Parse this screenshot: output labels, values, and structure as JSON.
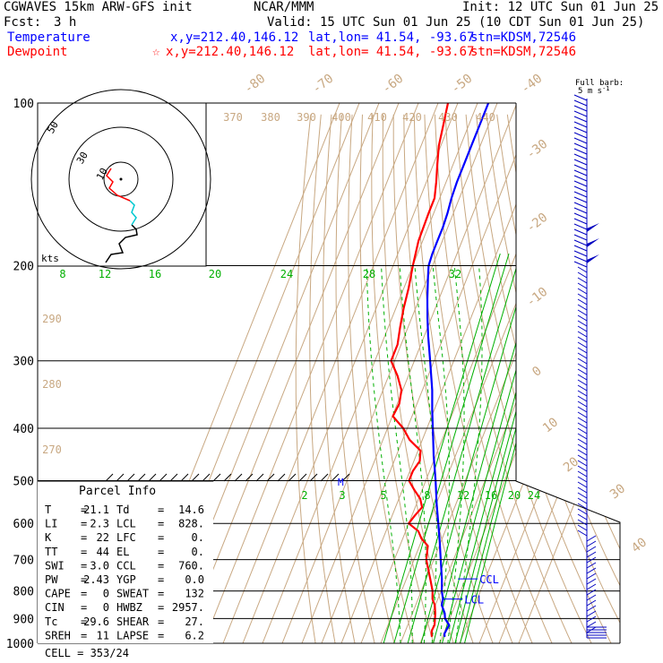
{
  "header": {
    "model": "CGWAVES 15km ARW-GFS init",
    "org": "NCAR/MMM",
    "init": "Init: 12 UTC Sun 01 Jun 25",
    "fcst_label": "Fcst:",
    "fcst_value": "3 h",
    "valid": "Valid: 15 UTC Sun 01 Jun 25 (10 CDT Sun 01 Jun 25)"
  },
  "legend": {
    "temperature": {
      "name": "Temperature",
      "xy": "x,y=212.40,146.12",
      "latlon": "lat,lon= 41.54, -93.67",
      "stn": "stn=KDSM,72546",
      "color": "#0000ff"
    },
    "dewpoint": {
      "name": "Dewpoint",
      "star": "☆",
      "xy": "x,y=212.40,146.12",
      "latlon": "lat,lon= 41.54, -93.67",
      "stn": "stn=KDSM,72546",
      "color": "#ff0000"
    }
  },
  "barb_legend": {
    "line1": "Full barb:",
    "line2": "5 m s",
    "sup": "-1"
  },
  "hodograph": {
    "ring_labels": [
      "50",
      "30",
      "10"
    ],
    "unit": "kts"
  },
  "parcel": {
    "title": "Parcel Info",
    "rows": [
      {
        "l": "T",
        "v1": "21.1",
        "m": "Td",
        "v2": "14.6"
      },
      {
        "l": "LI",
        "v1": "2.3",
        "m": "LCL",
        "v2": "828."
      },
      {
        "l": "K",
        "v1": "22",
        "m": "LFC",
        "v2": "0."
      },
      {
        "l": "TT",
        "v1": "44",
        "m": "EL",
        "v2": "0."
      },
      {
        "l": "SWI",
        "v1": "3.0",
        "m": "CCL",
        "v2": "760."
      },
      {
        "l": "PW",
        "v1": "2.43",
        "m": "YGP",
        "v2": "0.0"
      },
      {
        "l": "CAPE",
        "v1": "0",
        "m": "SWEAT",
        "v2": "132"
      },
      {
        "l": "CIN",
        "v1": "0",
        "m": "HWBZ",
        "v2": "2957."
      },
      {
        "l": "Tc",
        "v1": "29.6",
        "m": "SHEAR",
        "v2": "27."
      },
      {
        "l": "SREH",
        "v1": "11",
        "m": "LAPSE",
        "v2": "6.2"
      }
    ],
    "cell": "CELL = 353/24"
  },
  "markers": {
    "ccl": "CCL",
    "lcl": "LCL",
    "m": "M"
  },
  "colors": {
    "temperature": "#0000ff",
    "dewpoint": "#ff0000",
    "dry_adiabat": "#c8a882",
    "mixing_ratio": "#00b000",
    "moist_adiabat": "#00b000",
    "isobar": "#000000",
    "barb": "#0000c0",
    "hodo_wind": "#00c8d0"
  },
  "chart_data": {
    "type": "line",
    "title": "",
    "xlabel": "",
    "ylabel": "",
    "y_axis": {
      "scale": "log",
      "ylim": [
        1000,
        100
      ],
      "ticks": [
        100,
        200,
        300,
        400,
        500,
        600,
        700,
        800,
        900,
        1000
      ]
    },
    "isotherm_labels": [
      "-80",
      "-70",
      "-60",
      "-50",
      "-40",
      "-30",
      "-20",
      "-10",
      "0",
      "10",
      "20",
      "30",
      "40"
    ],
    "theta_labels": [
      "370",
      "380",
      "390",
      "400",
      "410",
      "420",
      "430",
      "440",
      "290",
      "280",
      "270"
    ],
    "mixing_ratio_labels_upper": [
      "8",
      "12",
      "16",
      "20",
      "24",
      "28",
      "32"
    ],
    "mixing_ratio_labels_lower": [
      "2",
      "3",
      "5",
      "8",
      "12",
      "16",
      "20",
      "24"
    ],
    "series": [
      {
        "name": "Temperature",
        "pressure": [
          973,
          960,
          945,
          925,
          900,
          880,
          850,
          828,
          800,
          760,
          700,
          650,
          600,
          550,
          500,
          470,
          450,
          420,
          400,
          370,
          340,
          300,
          270,
          250,
          230,
          210,
          200,
          190,
          180,
          170,
          160,
          150,
          140,
          130,
          120,
          110,
          100
        ],
        "temp_c": [
          21.1,
          20.4,
          20.6,
          21.0,
          17.6,
          16.4,
          13.2,
          12.6,
          10.4,
          8.0,
          3.5,
          -0.5,
          -5.0,
          -10.0,
          -15.0,
          -18.5,
          -21.0,
          -24.5,
          -27.0,
          -31.0,
          -35.0,
          -42.0,
          -48.0,
          -52.0,
          -56.0,
          -60.0,
          -62.0,
          -62.5,
          -62.5,
          -62.5,
          -63.0,
          -64.0,
          -64.5,
          -64.5,
          -64.5,
          -64.5,
          -64.5
        ]
      },
      {
        "name": "Dewpoint",
        "pressure": [
          973,
          960,
          945,
          925,
          900,
          880,
          850,
          828,
          800,
          760,
          700,
          660,
          640,
          620,
          600,
          580,
          560,
          540,
          520,
          500,
          480,
          460,
          440,
          420,
          400,
          380,
          360,
          340,
          320,
          300,
          280,
          260,
          240,
          220,
          200,
          180,
          160,
          150,
          140,
          130,
          120,
          110,
          100
        ],
        "temp_c": [
          14.6,
          13.8,
          13.3,
          13.6,
          12.5,
          11.6,
          9.7,
          7.3,
          5.7,
          2.1,
          -3.8,
          -5.8,
          -10.5,
          -13.6,
          -20.0,
          -18.5,
          -16.5,
          -19.2,
          -24.0,
          -28.5,
          -28.5,
          -27.0,
          -28.7,
          -36.5,
          -42.0,
          -49.7,
          -49.0,
          -50.6,
          -55.5,
          -61.8,
          -61.8,
          -64.0,
          -66.0,
          -67.6,
          -70.0,
          -72.1,
          -72.6,
          -72.6,
          -75.0,
          -78.0,
          -81.0,
          -82.9,
          -85.0
        ]
      }
    ]
  }
}
